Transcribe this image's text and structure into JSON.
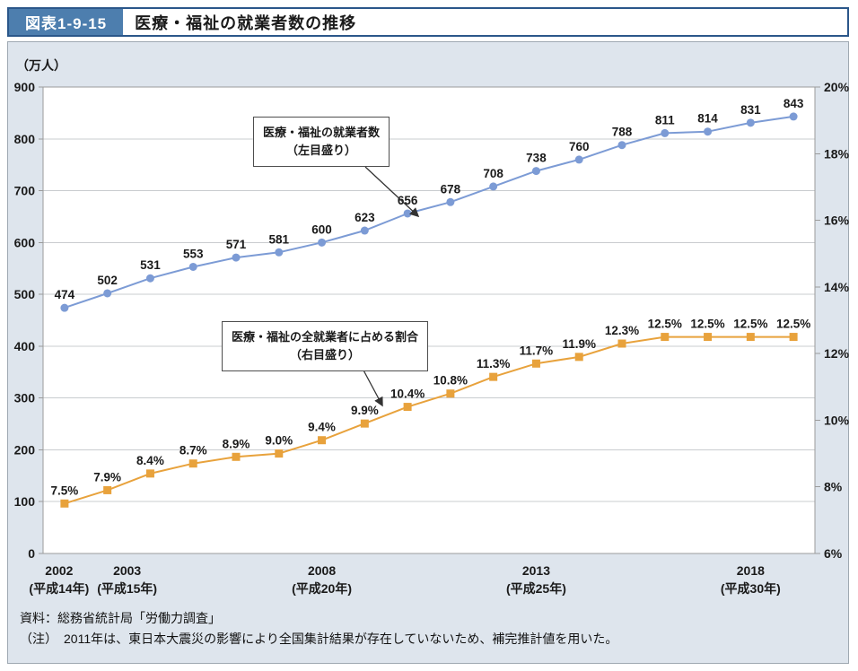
{
  "header": {
    "figure_label": "図表1-9-15",
    "title": "医療・福祉の就業者数の推移"
  },
  "colors": {
    "series_blue": "#7C9BD5",
    "series_orange": "#E8A23C",
    "header_box": "#4D7EAE",
    "header_border": "#2B578A",
    "panel_bg": "#DEE5ED",
    "gridline": "#C9CCCF",
    "axis": "#9B9B9B",
    "arrow": "#333333"
  },
  "chart_data": {
    "type": "line",
    "title": "医療・福祉の就業者数の推移",
    "unit_label": "（万人）",
    "years": [
      2002,
      2003,
      2004,
      2005,
      2006,
      2007,
      2008,
      2009,
      2010,
      2011,
      2012,
      2013,
      2014,
      2015,
      2016,
      2017,
      2018,
      2019
    ],
    "x_tick_labels": [
      {
        "year": "2002",
        "era": "(平成14年)"
      },
      {
        "year": "2003",
        "era": "(平成15年)"
      },
      {
        "year": "2008",
        "era": "(平成20年)"
      },
      {
        "year": "2013",
        "era": "(平成25年)"
      },
      {
        "year": "2018",
        "era": "(平成30年)"
      }
    ],
    "x_tick_years": [
      2002,
      2003,
      2008,
      2013,
      2018
    ],
    "left_axis": {
      "min": 0,
      "max": 900,
      "step": 100,
      "label": "（万人）"
    },
    "right_axis": {
      "min": 6,
      "max": 20,
      "step": 2,
      "suffix": "%"
    },
    "grid": "horizontal",
    "legend_position": "inline-callouts",
    "series": [
      {
        "name": "医療・福祉の就業者数（左目盛り）",
        "axis": "left",
        "marker": "circle",
        "color": "#7C9BD5",
        "values": [
          474,
          502,
          531,
          553,
          571,
          581,
          600,
          623,
          656,
          678,
          708,
          738,
          760,
          788,
          811,
          814,
          831,
          843
        ]
      },
      {
        "name": "医療・福祉の全就業者に占める割合（右目盛り）",
        "axis": "right",
        "marker": "square",
        "color": "#E8A23C",
        "label_suffix": "%",
        "values": [
          7.5,
          7.9,
          8.4,
          8.7,
          8.9,
          9.0,
          9.4,
          9.9,
          10.4,
          10.8,
          11.3,
          11.7,
          11.9,
          12.3,
          12.5,
          12.5,
          12.5,
          12.5
        ]
      }
    ]
  },
  "annotations": [
    {
      "line1": "医療・福祉の就業者数",
      "line2": "（左目盛り）"
    },
    {
      "line1": "医療・福祉の全就業者に占める割合",
      "line2": "（右目盛り）"
    }
  ],
  "footer": {
    "source": "資料：総務省統計局「労働力調査」",
    "note": "（注）　2011年は、東日本大震災の影響により全国集計結果が存在していないため、補完推計値を用いた。"
  }
}
